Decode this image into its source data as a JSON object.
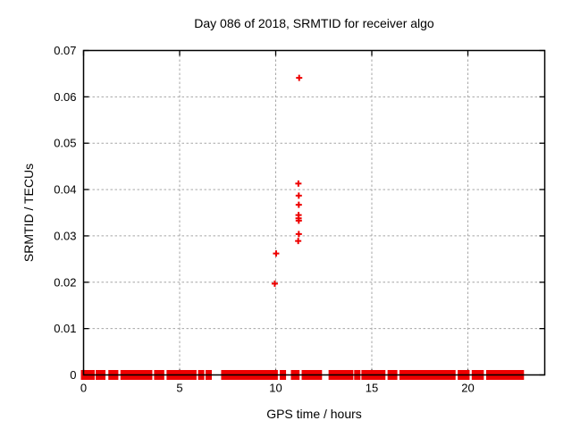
{
  "figure": {
    "background": "#ffffff"
  },
  "chart_data": {
    "type": "scatter",
    "title": "Day 086 of 2018, SRMTID for receiver algo",
    "xlabel": "GPS time / hours",
    "ylabel": "SRMTID / TECUs",
    "xlim": [
      0,
      24
    ],
    "ylim": [
      0,
      0.07
    ],
    "xticks": [
      0,
      5,
      10,
      15,
      20
    ],
    "xtick_labels": [
      "0",
      "5",
      "10",
      "15",
      "20"
    ],
    "yticks": [
      0,
      0.01,
      0.02,
      0.03,
      0.04,
      0.05,
      0.06,
      0.07
    ],
    "ytick_labels": [
      "0",
      "0.01",
      "0.02",
      "0.03",
      "0.04",
      "0.05",
      "0.06",
      "0.07"
    ],
    "grid": true,
    "grid_style": "dashed",
    "legend": "none",
    "marker": "plus",
    "colors": {
      "marker": "#ee0000",
      "grid": "#a6a6a6",
      "border": "#000000",
      "text": "#000000"
    },
    "series": [
      {
        "name": "SRMTID",
        "points": [
          {
            "x": 9.95,
            "y": 0.0197
          },
          {
            "x": 10.02,
            "y": 0.0262
          },
          {
            "x": 11.17,
            "y": 0.0289
          },
          {
            "x": 11.2,
            "y": 0.0304
          },
          {
            "x": 11.2,
            "y": 0.0333
          },
          {
            "x": 11.19,
            "y": 0.0338
          },
          {
            "x": 11.19,
            "y": 0.0345
          },
          {
            "x": 11.2,
            "y": 0.0367
          },
          {
            "x": 11.2,
            "y": 0.0387
          },
          {
            "x": 11.18,
            "y": 0.0413
          },
          {
            "x": 11.22,
            "y": 0.0641
          }
        ],
        "baseline_value": 0,
        "baseline_segments": [
          [
            0.0,
            0.05
          ],
          [
            0.12,
            0.58
          ],
          [
            0.63,
            1.14
          ],
          [
            1.29,
            1.81
          ],
          [
            1.92,
            3.58
          ],
          [
            3.67,
            4.2
          ],
          [
            4.32,
            5.88
          ],
          [
            6.06,
            6.18
          ],
          [
            6.45,
            6.57
          ],
          [
            7.16,
            10.11
          ],
          [
            10.28,
            10.47
          ],
          [
            10.79,
            11.24
          ],
          [
            11.35,
            12.41
          ],
          [
            12.75,
            14.04
          ],
          [
            14.14,
            14.35
          ],
          [
            14.46,
            15.71
          ],
          [
            15.82,
            16.33
          ],
          [
            16.44,
            19.36
          ],
          [
            19.47,
            20.09
          ],
          [
            20.2,
            20.83
          ],
          [
            20.95,
            22.92
          ]
        ]
      }
    ]
  }
}
